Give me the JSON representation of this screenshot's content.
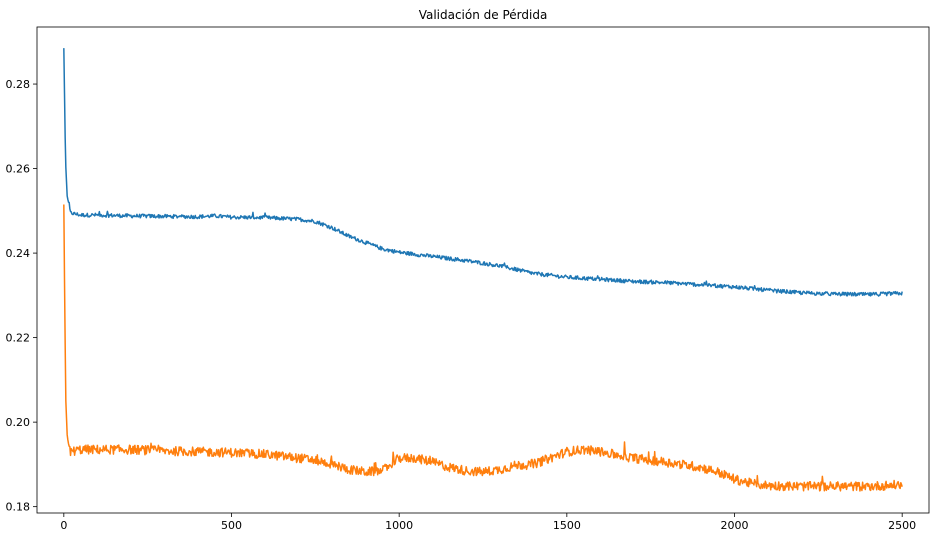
{
  "chart_data": {
    "type": "line",
    "title": "Validación de Pérdida",
    "xlabel": "",
    "ylabel": "",
    "xlim": [
      -80,
      2580
    ],
    "ylim": [
      0.1785,
      0.2935
    ],
    "x_ticks": [
      0,
      500,
      1000,
      1500,
      2000,
      2500
    ],
    "y_ticks": [
      0.18,
      0.2,
      0.22,
      0.24,
      0.26,
      0.28
    ],
    "y_tick_labels": [
      "0.18",
      "0.20",
      "0.22",
      "0.24",
      "0.26",
      "0.28"
    ],
    "grid": false,
    "legend": "none",
    "series": [
      {
        "color": "#1f77b4",
        "x": [
          0,
          5,
          10,
          20,
          50,
          100,
          200,
          300,
          400,
          450,
          500,
          600,
          700,
          750,
          800,
          850,
          900,
          950,
          1000,
          1100,
          1200,
          1300,
          1400,
          1500,
          1600,
          1700,
          1800,
          1900,
          2000,
          2100,
          2200,
          2300,
          2400,
          2500
        ],
        "values": [
          0.2885,
          0.262,
          0.2535,
          0.2495,
          0.249,
          0.249,
          0.2488,
          0.2487,
          0.2486,
          0.2488,
          0.2485,
          0.2484,
          0.248,
          0.2475,
          0.246,
          0.244,
          0.2425,
          0.241,
          0.2402,
          0.2392,
          0.2382,
          0.237,
          0.2352,
          0.2343,
          0.2338,
          0.2333,
          0.233,
          0.2325,
          0.232,
          0.2312,
          0.2306,
          0.2303,
          0.2302,
          0.2305
        ]
      },
      {
        "color": "#ff7f0e",
        "x": [
          0,
          3,
          6,
          10,
          15,
          20,
          50,
          100,
          200,
          300,
          400,
          500,
          600,
          700,
          750,
          800,
          850,
          900,
          950,
          1000,
          1050,
          1100,
          1150,
          1200,
          1250,
          1300,
          1350,
          1400,
          1450,
          1500,
          1550,
          1600,
          1650,
          1700,
          1800,
          1900,
          1950,
          2000,
          2050,
          2100,
          2200,
          2300,
          2400,
          2500
        ],
        "values": [
          0.2515,
          0.225,
          0.205,
          0.197,
          0.194,
          0.193,
          0.1935,
          0.1935,
          0.1935,
          0.1932,
          0.193,
          0.1928,
          0.1924,
          0.1915,
          0.191,
          0.19,
          0.1888,
          0.1882,
          0.1885,
          0.1915,
          0.1915,
          0.1905,
          0.1893,
          0.1885,
          0.1882,
          0.1888,
          0.1898,
          0.19,
          0.1915,
          0.193,
          0.1935,
          0.193,
          0.1922,
          0.1915,
          0.1905,
          0.1893,
          0.1882,
          0.1865,
          0.1855,
          0.185,
          0.1848,
          0.1848,
          0.1848,
          0.1852
        ]
      }
    ]
  }
}
